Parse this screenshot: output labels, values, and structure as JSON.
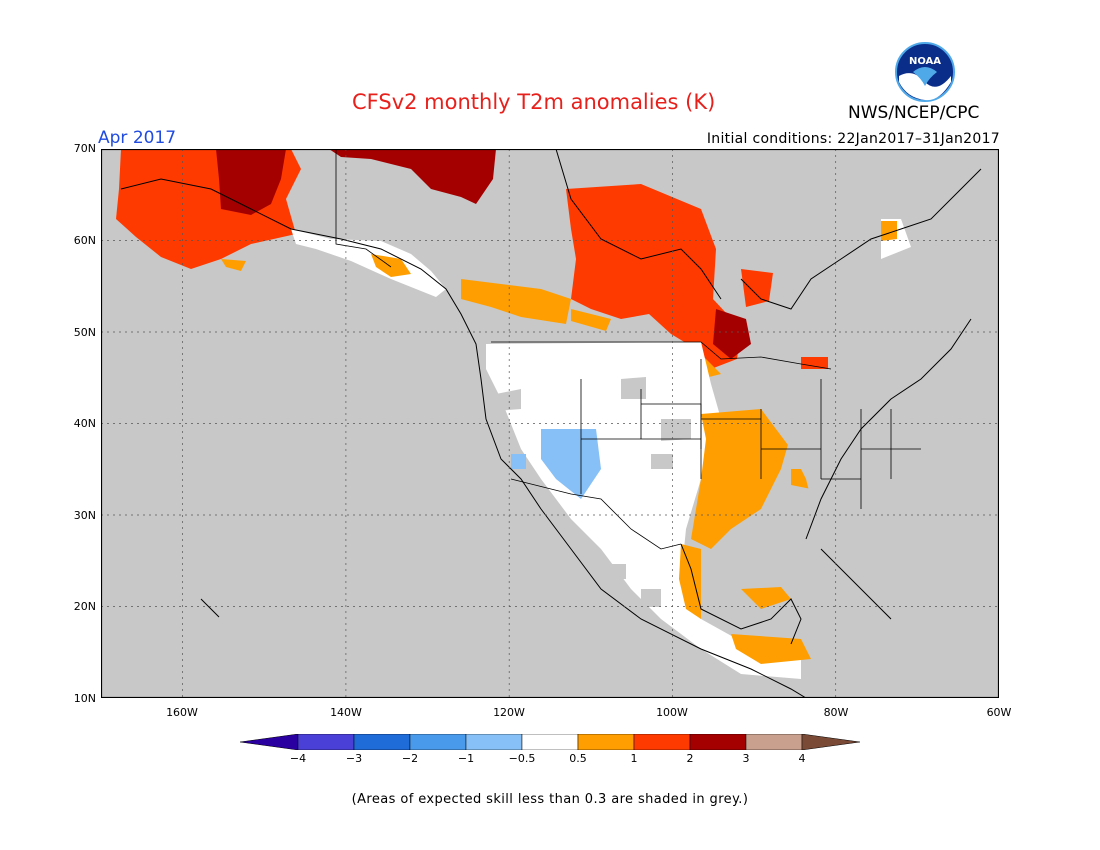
{
  "header": {
    "title": "CFSv2 monthly T2m anomalies (K)",
    "valid_month": "Apr 2017",
    "initial_conditions": "Initial conditions: 22Jan2017–31Jan2017",
    "agency": "NWS/NCEP/CPC",
    "logo_text": "NOAA"
  },
  "axes": {
    "latitude_labels": [
      "70N",
      "60N",
      "50N",
      "40N",
      "30N",
      "20N",
      "10N"
    ],
    "longitude_labels": [
      "160W",
      "140W",
      "120W",
      "100W",
      "80W",
      "60W"
    ],
    "lat_range": [
      10,
      70
    ],
    "lon_range": [
      -170,
      -60
    ]
  },
  "legend": {
    "labels": [
      "−4",
      "−3",
      "−2",
      "−1",
      "−0.5",
      "0.5",
      "1",
      "2",
      "3",
      "4"
    ],
    "colors": [
      "#2a00a0",
      "#4a3fd6",
      "#1f6bd8",
      "#4a9aeb",
      "#86c0f6",
      "#ffffff",
      "#ff9e00",
      "#ff3a00",
      "#a50000",
      "#c9a08e",
      "#7a4a36"
    ],
    "skill_mask_color": "#c8c8c8"
  },
  "footnote": "(Areas of expected skill less than 0.3 are shaded in grey.)"
}
